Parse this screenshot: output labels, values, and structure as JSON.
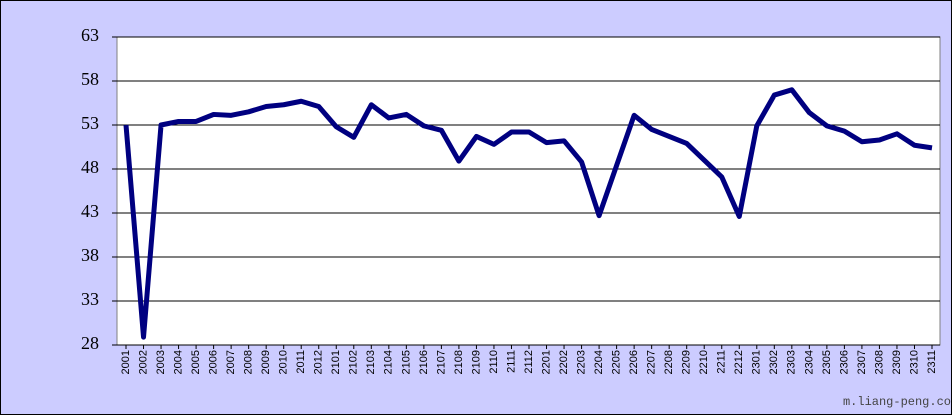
{
  "chart_data": {
    "type": "line",
    "categories": [
      "2001",
      "2002",
      "2003",
      "2004",
      "2005",
      "2006",
      "2007",
      "2008",
      "2009",
      "2010",
      "2011",
      "2012",
      "2101",
      "2102",
      "2103",
      "2104",
      "2105",
      "2106",
      "2107",
      "2108",
      "2109",
      "2110",
      "2111",
      "2112",
      "2201",
      "2202",
      "2203",
      "2204",
      "2205",
      "2206",
      "2207",
      "2208",
      "2209",
      "2210",
      "2211",
      "2212",
      "2301",
      "2302",
      "2303",
      "2304",
      "2305",
      "2306",
      "2307",
      "2308",
      "2309",
      "2310",
      "2311"
    ],
    "series": [
      {
        "color": "#000080",
        "values": [
          53.0,
          28.9,
          53.0,
          53.4,
          53.4,
          54.2,
          54.1,
          54.5,
          55.1,
          55.3,
          55.7,
          55.1,
          52.8,
          51.6,
          55.3,
          53.8,
          54.2,
          52.9,
          52.4,
          48.9,
          51.7,
          50.8,
          52.2,
          52.2,
          51.0,
          51.2,
          48.8,
          42.7,
          48.4,
          54.1,
          52.5,
          51.7,
          50.9,
          49.0,
          47.1,
          42.6,
          52.9,
          56.4,
          57.0,
          54.4,
          52.9,
          52.3,
          51.1,
          51.3,
          52.0,
          50.7,
          50.4
        ]
      }
    ],
    "ylim": [
      28,
      63
    ],
    "yticks": [
      28,
      33,
      38,
      43,
      48,
      53,
      58,
      63
    ],
    "grid": true,
    "annotation": "m.liang-peng.co"
  }
}
